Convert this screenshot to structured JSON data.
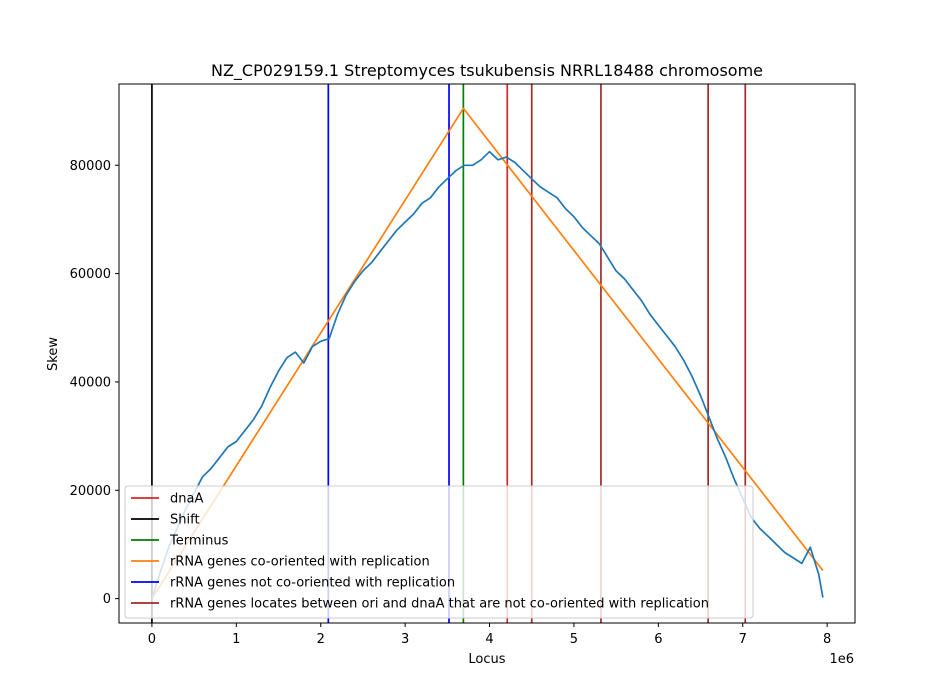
{
  "chart_data": {
    "type": "line",
    "title": "NZ_CP029159.1 Streptomyces tsukubensis NRRL18488 chromosome",
    "xlabel": "Locus",
    "ylabel": "Skew",
    "x_multiplier_label": "1e6",
    "xlim": [
      -0.39,
      8.33
    ],
    "ylim": [
      -4500,
      95000
    ],
    "x_ticks": [
      0,
      1,
      2,
      3,
      4,
      5,
      6,
      7,
      8
    ],
    "x_tick_labels": [
      "0",
      "1",
      "2",
      "3",
      "4",
      "5",
      "6",
      "7",
      "8"
    ],
    "y_ticks": [
      0,
      20000,
      40000,
      60000,
      80000
    ],
    "y_tick_labels": [
      "0",
      "20000",
      "40000",
      "60000",
      "80000"
    ],
    "legend_position": "lower-left",
    "legend": [
      {
        "label": "dnaA",
        "color": "#d62728"
      },
      {
        "label": "Shift",
        "color": "#000000"
      },
      {
        "label": "Terminus",
        "color": "#008000"
      },
      {
        "label": "rRNA genes co-oriented with replication",
        "color": "#ff7f0e"
      },
      {
        "label": "rRNA genes not co-oriented with replication",
        "color": "#0000ff"
      },
      {
        "label": "rRNA genes locates between ori and dnaA that are not co-oriented with replication",
        "color": "#a52a2a"
      }
    ],
    "vlines": [
      {
        "x": 0.0,
        "color": "#000000",
        "group": "Shift"
      },
      {
        "x": 2.09,
        "color": "#0000ff",
        "group": "rRNA genes not co-oriented with replication"
      },
      {
        "x": 3.52,
        "color": "#0000ff",
        "group": "rRNA genes not co-oriented with replication"
      },
      {
        "x": 3.69,
        "color": "#008000",
        "group": "Terminus"
      },
      {
        "x": 4.21,
        "color": "#d62728",
        "group": "dnaA"
      },
      {
        "x": 4.5,
        "color": "#a52a2a",
        "group": "rRNA genes locates between ori and dnaA that are not co-oriented with replication"
      },
      {
        "x": 5.32,
        "color": "#a52a2a",
        "group": "rRNA genes locates between ori and dnaA that are not co-oriented with replication"
      },
      {
        "x": 6.59,
        "color": "#a52a2a",
        "group": "rRNA genes locates between ori and dnaA that are not co-oriented with replication"
      },
      {
        "x": 7.03,
        "color": "#a52a2a",
        "group": "rRNA genes locates between ori and dnaA that are not co-oriented with replication"
      }
    ],
    "series": [
      {
        "name": "rRNA genes co-oriented with replication",
        "color": "#ff7f0e",
        "x": [
          0.0,
          3.69,
          7.95
        ],
        "y": [
          0,
          90500,
          5200
        ]
      },
      {
        "color": "#1f77b4",
        "x": [
          0.0,
          0.1,
          0.2,
          0.3,
          0.4,
          0.5,
          0.6,
          0.7,
          0.8,
          0.9,
          1.0,
          1.1,
          1.2,
          1.3,
          1.4,
          1.5,
          1.6,
          1.7,
          1.8,
          1.9,
          2.0,
          2.1,
          2.2,
          2.3,
          2.4,
          2.5,
          2.6,
          2.7,
          2.8,
          2.9,
          3.0,
          3.1,
          3.2,
          3.3,
          3.4,
          3.5,
          3.6,
          3.7,
          3.8,
          3.9,
          4.0,
          4.1,
          4.2,
          4.3,
          4.4,
          4.5,
          4.6,
          4.7,
          4.8,
          4.9,
          5.0,
          5.1,
          5.2,
          5.3,
          5.4,
          5.5,
          5.6,
          5.7,
          5.8,
          5.9,
          6.0,
          6.1,
          6.2,
          6.3,
          6.4,
          6.5,
          6.6,
          6.7,
          6.8,
          6.9,
          7.0,
          7.1,
          7.2,
          7.3,
          7.4,
          7.5,
          7.6,
          7.7,
          7.8,
          7.9,
          7.95
        ],
        "y": [
          0,
          5000,
          9500,
          13000,
          16500,
          19500,
          22500,
          24000,
          26000,
          28000,
          29000,
          31000,
          33000,
          35500,
          39000,
          42000,
          44500,
          45500,
          43500,
          46500,
          47500,
          48000,
          52500,
          56000,
          58500,
          60500,
          62000,
          64000,
          66000,
          68000,
          69500,
          71000,
          73000,
          74000,
          76000,
          77500,
          79000,
          80000,
          80000,
          81000,
          82500,
          81000,
          81500,
          80500,
          79000,
          77500,
          76000,
          75000,
          74000,
          72000,
          70500,
          68500,
          67000,
          65500,
          63000,
          60500,
          59000,
          57000,
          55000,
          52500,
          50500,
          48500,
          46500,
          44000,
          41000,
          37500,
          33500,
          29500,
          26000,
          22000,
          18500,
          15000,
          13000,
          11500,
          10000,
          8500,
          7500,
          6500,
          9500,
          4500,
          200
        ]
      }
    ]
  }
}
